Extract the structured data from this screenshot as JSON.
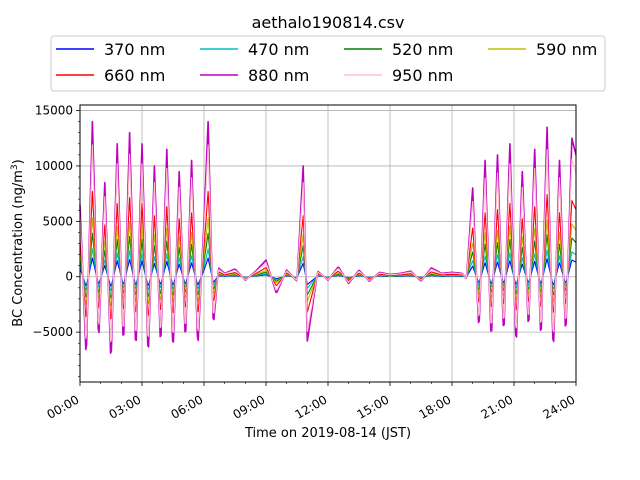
{
  "chart_data": {
    "type": "line",
    "title": "aethalo190814.csv",
    "xlabel": "Time on 2019-08-14 (JST)",
    "ylabel_main": "BC Concentration (ng/m",
    "ylabel_sup": "3",
    "ylabel_close": ")",
    "xlim": [
      "00:00",
      "24:00"
    ],
    "ylim": [
      -9500,
      15500
    ],
    "x_ticks": [
      "00:00",
      "03:00",
      "06:00",
      "09:00",
      "12:00",
      "15:00",
      "18:00",
      "21:00",
      "24:00"
    ],
    "x_tick_hours": [
      0,
      3,
      6,
      9,
      12,
      15,
      18,
      21,
      24
    ],
    "y_ticks": [
      -5000,
      0,
      5000,
      10000,
      15000
    ],
    "y_tick_labels": [
      "−5000",
      "0",
      "5000",
      "10000",
      "15000"
    ],
    "grid": true,
    "legend_position": "top",
    "series": [
      {
        "name": "370 nm",
        "color": "#0000ff",
        "scale": 0.12
      },
      {
        "name": "470 nm",
        "color": "#00bfbf",
        "scale": 0.18
      },
      {
        "name": "520 nm",
        "color": "#008000",
        "scale": 0.28
      },
      {
        "name": "590 nm",
        "color": "#bfbf00",
        "scale": 0.38
      },
      {
        "name": "660 nm",
        "color": "#ff0000",
        "scale": 0.55
      },
      {
        "name": "880 nm",
        "color": "#bf00bf",
        "scale": 1.0
      },
      {
        "name": "950 nm",
        "color": "#ffc0cb",
        "scale": 0.85
      }
    ],
    "envelope_880nm": {
      "hours": [
        0.0,
        0.3,
        0.6,
        0.9,
        1.2,
        1.5,
        1.8,
        2.1,
        2.4,
        2.7,
        3.0,
        3.3,
        3.6,
        3.9,
        4.2,
        4.5,
        4.8,
        5.1,
        5.4,
        5.7,
        6.0,
        6.2,
        6.45,
        6.7,
        7.0,
        7.5,
        8.0,
        8.5,
        9.0,
        9.5,
        10.0,
        10.5,
        10.8,
        11.0,
        11.5,
        12.0,
        12.5,
        13.0,
        13.5,
        14.0,
        14.5,
        15.0,
        15.5,
        16.0,
        16.5,
        17.0,
        17.5,
        18.0,
        18.5,
        18.7,
        19.0,
        19.3,
        19.6,
        19.9,
        20.2,
        20.5,
        20.8,
        21.1,
        21.4,
        21.7,
        22.0,
        22.3,
        22.6,
        22.9,
        23.2,
        23.5,
        23.8,
        24.0
      ],
      "values": [
        6500,
        -7500,
        14000,
        -6000,
        8500,
        -8000,
        12000,
        -6500,
        13000,
        -7000,
        12000,
        -7500,
        10000,
        -6500,
        11500,
        -7000,
        9500,
        -6000,
        10500,
        -6500,
        5000,
        14000,
        -4500,
        800,
        300,
        700,
        -300,
        500,
        1500,
        -1500,
        600,
        -400,
        10000,
        -5800,
        500,
        -300,
        900,
        -600,
        600,
        -400,
        400,
        200,
        300,
        500,
        -400,
        800,
        300,
        400,
        300,
        -200,
        8000,
        -5000,
        10500,
        -6000,
        11000,
        -5500,
        12000,
        -6500,
        9500,
        -5000,
        11500,
        -6000,
        13500,
        -7000,
        10500,
        -5500,
        12500,
        11000
      ]
    }
  }
}
